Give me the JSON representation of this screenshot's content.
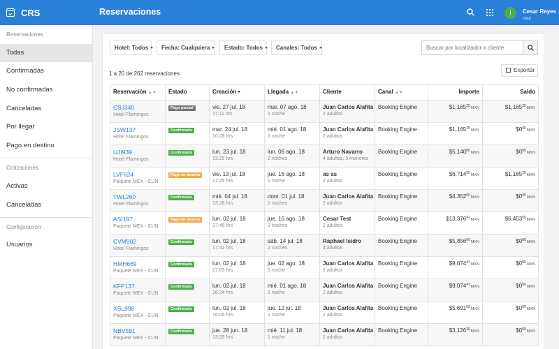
{
  "app": {
    "name": "CRS"
  },
  "header": {
    "title": "Reservaciones",
    "user_name": "Cesar Reyes",
    "user_sub": "lstul",
    "avatar_letter": "I"
  },
  "sidebar": {
    "sections": [
      {
        "heading": "Reservaciones",
        "items": [
          "Todas",
          "Confirmadas",
          "No confirmadas",
          "Canceladas",
          "Por llegar",
          "Pago en destino"
        ]
      },
      {
        "heading": "Cotizaciones",
        "items": [
          "Activas",
          "Canceladas"
        ]
      },
      {
        "heading": "Configuración",
        "items": [
          "Usuarios"
        ]
      }
    ],
    "active": "Todas"
  },
  "filters": [
    {
      "label": "Hotel: Todos"
    },
    {
      "label": "Fecha: Cualquiera"
    },
    {
      "label": "Estado: Todos"
    },
    {
      "label": "Canales: Todos"
    }
  ],
  "search": {
    "placeholder": "Buscar por localizador o cliente"
  },
  "summary": {
    "text": "1 a 20 de 262 reservaciones"
  },
  "export": {
    "label": "Exportar"
  },
  "table": {
    "columns": [
      "Reservación",
      "Estado",
      "Creación",
      "Llegada",
      "Cliente",
      "Canal",
      "Importe",
      "Saldo"
    ],
    "rows": [
      {
        "loc": "CSJ340",
        "prop": "Hotel Flamingos",
        "status": "Pago parcial",
        "status_color": "#777777",
        "created": "vie. 27 jul. 18",
        "created_time": "17:11 hrs",
        "arrival": "mar. 07 ago. 18",
        "nights": "1 noche",
        "client": "Juan Carlos Alafita",
        "guests": "2 adultos",
        "channel": "Booking Engine",
        "amount": "$1,165",
        "amount_c": "25",
        "balance": "$1,165",
        "balance_c": "25",
        "currency": "MXN"
      },
      {
        "loc": "JSW137",
        "prop": "Hotel Flamingos",
        "status": "Confirmado",
        "status_color": "#4caf50",
        "created": "mar. 24 jul. 18",
        "created_time": "10:28 hrs",
        "arrival": "mié. 01 ago. 18",
        "nights": "1 noche",
        "client": "Juan Carlos Alafita",
        "guests": "2 adultos",
        "channel": "Booking Engine",
        "amount": "$1,165",
        "amount_c": "25",
        "balance": "$0",
        "balance_c": "00",
        "currency": "MXN"
      },
      {
        "loc": "UJI939",
        "prop": "Hotel Flamingos",
        "status": "Confirmado",
        "status_color": "#4caf50",
        "created": "lun. 23 jul. 18",
        "created_time": "13:25 hrs",
        "arrival": "lun. 06 ago. 18",
        "nights": "2 noches",
        "client": "Arturo Navarro",
        "guests": "4 adultos, 3 menores",
        "channel": "Booking Engine",
        "amount": "$5,140",
        "amount_c": "80",
        "balance": "$0",
        "balance_c": "00",
        "currency": "MXN"
      },
      {
        "loc": "LVF624",
        "prop": "Paquete MEX - CUN",
        "status": "Pago en destino",
        "status_color": "#f0ad4e",
        "created": "vie. 13 jul. 18",
        "created_time": "17:25 hrs",
        "arrival": "jue. 16 ago. 18",
        "nights": "1 noche",
        "client": "as as",
        "guests": "2 adultos",
        "channel": "Booking Engine",
        "amount": "$6,714",
        "amount_c": "55",
        "balance": "$1,165",
        "balance_c": "25",
        "currency": "MXN"
      },
      {
        "loc": "TWL260",
        "prop": "Hotel Flamingos",
        "status": "Confirmado",
        "status_color": "#4caf50",
        "created": "mié. 04 jul. 18",
        "created_time": "13:26 hrs",
        "arrival": "dom. 01 jul. 18",
        "nights": "2 noches",
        "client": "Juan Carlos Alafita",
        "guests": "2 adultos",
        "channel": "Booking Engine",
        "amount": "$4,352",
        "amount_c": "00",
        "balance": "$0",
        "balance_c": "00",
        "currency": "MXN"
      },
      {
        "loc": "ASI197",
        "prop": "Paquete MEX - CUN",
        "status": "Pago en destino",
        "status_color": "#f0ad4e",
        "created": "lun. 02 jul. 18",
        "created_time": "17:45 hrs",
        "arrival": "jue. 16 ago. 18",
        "nights": "3 noches",
        "client": "Cesar Test",
        "guests": "2 adultos",
        "channel": "Booking Engine",
        "amount": "$13,376",
        "amount_c": "41",
        "balance": "$6,453",
        "balance_c": "65",
        "currency": "MXN"
      },
      {
        "loc": "CVM902",
        "prop": "Hotel Flamingos",
        "status": "Confirmado",
        "status_color": "#4caf50",
        "created": "lun. 02 jul. 18",
        "created_time": "17:42 hrs",
        "arrival": "sáb. 14 jul. 18",
        "nights": "2 noches",
        "client": "Raphael Isidro",
        "guests": "4 adultos",
        "channel": "Booking Engine",
        "amount": "$5,856",
        "amount_c": "00",
        "balance": "$0",
        "balance_c": "00",
        "currency": "MXN"
      },
      {
        "loc": "HMH669",
        "prop": "Paquete MEX - CUN",
        "status": "Confirmado",
        "status_color": "#4caf50",
        "created": "lun. 02 jul. 18",
        "created_time": "17:03 hrs",
        "arrival": "jue. 02 ago. 18",
        "nights": "1 noche",
        "client": "Juan Carlos Alafita",
        "guests": "2 adultos",
        "channel": "Booking Engine",
        "amount": "$9,074",
        "amount_c": "41",
        "balance": "$0",
        "balance_c": "00",
        "currency": "MXN"
      },
      {
        "loc": "KFP137",
        "prop": "Paquete MEX - CUN",
        "status": "Confirmado",
        "status_color": "#4caf50",
        "created": "lun. 02 jul. 18",
        "created_time": "16:34 hrs",
        "arrival": "mié. 01 ago. 18",
        "nights": "1 noche",
        "client": "Juan Carlos Alafita",
        "guests": "2 adultos",
        "channel": "Booking Engine",
        "amount": "$9,074",
        "amount_c": "41",
        "balance": "$0",
        "balance_c": "00",
        "currency": "MXN"
      },
      {
        "loc": "XSL998",
        "prop": "Paquete MEX - CUN",
        "status": "Confirmado",
        "status_color": "#4caf50",
        "created": "lun. 02 jul. 18",
        "created_time": "16:05 hrs",
        "arrival": "jue. 12 jul. 18",
        "nights": "1 noche",
        "client": "Juan Carlos Alafita",
        "guests": "2 adultos",
        "channel": "Booking Engine",
        "amount": "$5,691",
        "amount_c": "62",
        "balance": "$0",
        "balance_c": "00",
        "currency": "MXN"
      },
      {
        "loc": "NBV591",
        "prop": "Paquete MEX - CUN",
        "status": "Confirmado",
        "status_color": "#4caf50",
        "created": "jue. 28 jun. 18",
        "created_time": "13:25 hrs",
        "arrival": "mié. 11 jul. 18",
        "nights": "1 noche",
        "client": "Juan Carlos Alafita",
        "guests": "2 adultos",
        "channel": "Booking Engine",
        "amount": "$3,126",
        "amount_c": "26",
        "balance": "$0",
        "balance_c": "00",
        "currency": "MXN"
      }
    ]
  }
}
